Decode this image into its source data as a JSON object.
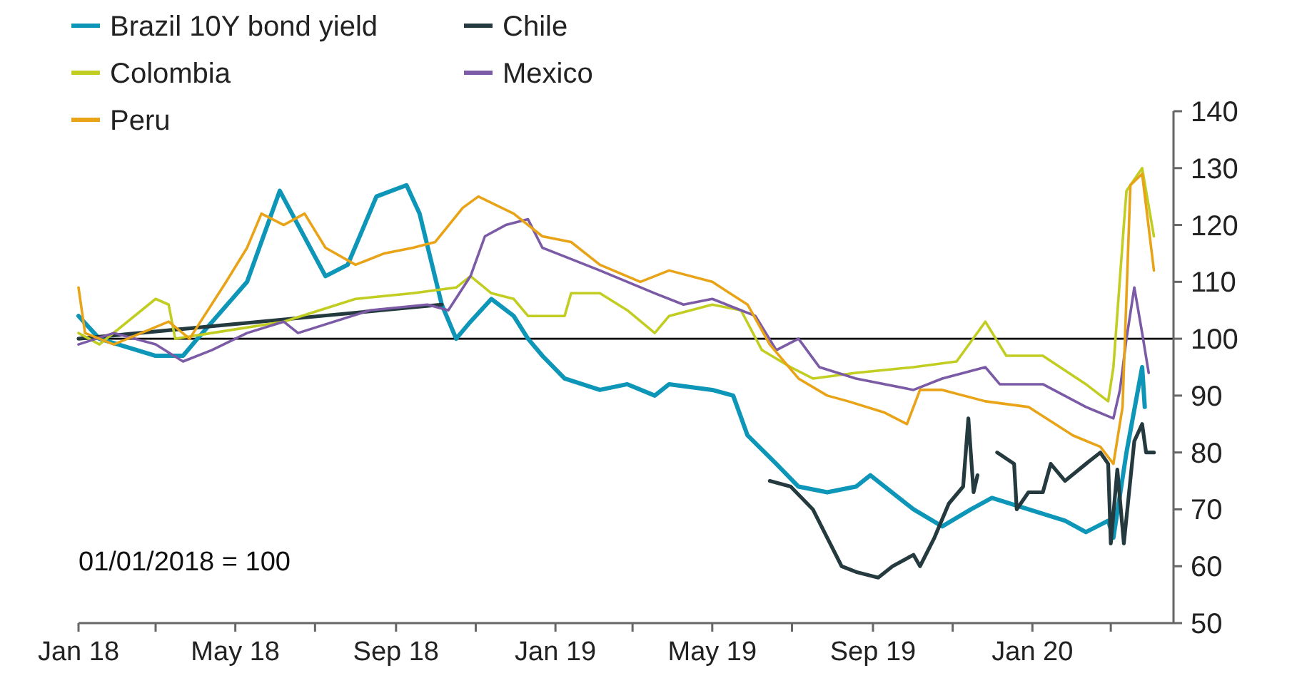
{
  "chart_data": {
    "type": "line",
    "legend": "top left",
    "grid": false,
    "xlim": [
      "2018-01-01",
      "2020-04-18"
    ],
    "xticks": [
      {
        "value": "2018-01-01",
        "label": "Jan 18"
      },
      {
        "value": "2018-03-01",
        "label": null
      },
      {
        "value": "2018-05-01",
        "label": "May 18"
      },
      {
        "value": "2018-07-01",
        "label": null
      },
      {
        "value": "2018-09-01",
        "label": "Sep 18"
      },
      {
        "value": "2018-11-01",
        "label": null
      },
      {
        "value": "2019-01-01",
        "label": "Jan 19"
      },
      {
        "value": "2019-03-01",
        "label": null
      },
      {
        "value": "2019-05-01",
        "label": "May 19"
      },
      {
        "value": "2019-07-01",
        "label": null
      },
      {
        "value": "2019-09-01",
        "label": "Sep 19"
      },
      {
        "value": "2019-11-01",
        "label": null
      },
      {
        "value": "2020-01-01",
        "label": "Jan 20"
      },
      {
        "value": "2020-03-01",
        "label": null
      }
    ],
    "ylim": [
      50,
      140
    ],
    "yticks": [
      50,
      60,
      70,
      80,
      90,
      100,
      110,
      120,
      130,
      140
    ],
    "ref_lines": [
      {
        "axis": "y",
        "value": 100,
        "color": "#000000"
      }
    ],
    "annotations": [
      "01/01/2018 = 100"
    ],
    "series": [
      {
        "name": "Brazil 10Y bond yield",
        "color": "#0e96b9",
        "x": [
          "2018-01-01",
          "2018-01-17",
          "2018-03-01",
          "2018-03-22",
          "2018-04-02",
          "2018-05-10",
          "2018-06-04",
          "2018-06-18",
          "2018-07-09",
          "2018-07-26",
          "2018-08-17",
          "2018-09-09",
          "2018-09-19",
          "2018-10-06",
          "2018-10-17",
          "2018-10-28",
          "2018-11-13",
          "2018-11-30",
          "2018-12-11",
          "2018-12-22",
          "2019-01-08",
          "2019-02-04",
          "2019-02-25",
          "2019-03-18",
          "2019-03-29",
          "2019-05-01",
          "2019-05-17",
          "2019-05-28",
          "2019-06-19",
          "2019-07-06",
          "2019-07-28",
          "2019-08-19",
          "2019-08-30",
          "2019-09-10",
          "2019-10-02",
          "2019-10-24",
          "2019-11-15",
          "2019-12-01",
          "2019-12-29",
          "2020-01-26",
          "2020-02-11",
          "2020-02-28",
          "2020-03-03",
          "2020-03-13",
          "2020-03-25",
          "2020-03-27"
        ],
        "values": [
          104,
          100,
          97,
          97,
          100,
          110,
          126,
          120,
          111,
          113,
          125,
          127,
          122,
          106,
          100,
          103,
          107,
          104,
          100,
          97,
          93,
          91,
          92,
          90,
          92,
          91,
          90,
          83,
          78,
          74,
          73,
          74,
          76,
          74,
          70,
          67,
          70,
          72,
          70,
          68,
          66,
          68,
          65,
          80,
          95,
          88
        ]
      },
      {
        "name": "Chile",
        "color": "#243a3e",
        "x": [
          "2018-01-01",
          "2018-10-06",
          "2019-01-01",
          "2019-06-14",
          "2019-06-30",
          "2019-07-17",
          "2019-07-28",
          "2019-08-08",
          "2019-08-19",
          "2019-09-05",
          "2019-09-16",
          "2019-10-02",
          "2019-10-07",
          "2019-10-18",
          "2019-10-29",
          "2019-11-09",
          "2019-11-13",
          "2019-11-17",
          "2019-11-20",
          "2019-11-24",
          "2019-12-05",
          "2019-12-18",
          "2019-12-20",
          "2019-12-29",
          "2020-01-09",
          "2020-01-15",
          "2020-01-26",
          "2020-02-11",
          "2020-02-22",
          "2020-02-28",
          "2020-03-01",
          "2020-03-06",
          "2020-03-11",
          "2020-03-19",
          "2020-03-25",
          "2020-03-28",
          "2020-04-03"
        ],
        "values": [
          100,
          106,
          null,
          75,
          74,
          70,
          65,
          60,
          59,
          58,
          60,
          62,
          60,
          65,
          71,
          74,
          86,
          73,
          76,
          null,
          80,
          78,
          70,
          73,
          73,
          78,
          75,
          78,
          80,
          78,
          64,
          77,
          64,
          82,
          85,
          80,
          80
        ]
      },
      {
        "name": "Colombia",
        "color": "#c2cd22",
        "x": [
          "2018-01-01",
          "2018-01-17",
          "2018-03-01",
          "2018-03-11",
          "2018-03-16",
          "2018-04-13",
          "2018-06-07",
          "2018-08-01",
          "2018-09-14",
          "2018-10-17",
          "2018-10-28",
          "2018-11-13",
          "2018-11-30",
          "2018-12-11",
          "2019-01-08",
          "2019-01-13",
          "2019-02-04",
          "2019-02-25",
          "2019-03-18",
          "2019-03-29",
          "2019-05-01",
          "2019-05-23",
          "2019-06-08",
          "2019-06-30",
          "2019-07-17",
          "2019-08-19",
          "2019-10-02",
          "2019-11-04",
          "2019-11-26",
          "2019-12-12",
          "2020-01-09",
          "2020-02-11",
          "2020-02-28",
          "2020-03-03",
          "2020-03-11",
          "2020-03-13",
          "2020-03-25",
          "2020-04-03"
        ],
        "values": [
          101,
          99,
          107,
          106,
          100,
          101,
          103,
          107,
          108,
          109,
          111,
          108,
          107,
          104,
          104,
          108,
          108,
          105,
          101,
          104,
          106,
          105,
          98,
          95,
          93,
          94,
          95,
          96,
          103,
          97,
          97,
          92,
          89,
          95,
          120,
          126,
          130,
          118
        ]
      },
      {
        "name": "Mexico",
        "color": "#7b5aa6",
        "x": [
          "2018-01-01",
          "2018-01-28",
          "2018-03-01",
          "2018-03-22",
          "2018-04-13",
          "2018-05-10",
          "2018-06-07",
          "2018-06-18",
          "2018-08-12",
          "2018-09-25",
          "2018-10-11",
          "2018-10-28",
          "2018-11-08",
          "2018-11-24",
          "2018-12-11",
          "2018-12-22",
          "2019-01-13",
          "2019-02-04",
          "2019-02-25",
          "2019-03-18",
          "2019-04-09",
          "2019-05-01",
          "2019-06-03",
          "2019-06-19",
          "2019-07-06",
          "2019-07-22",
          "2019-08-19",
          "2019-10-02",
          "2019-10-24",
          "2019-11-26",
          "2019-12-07",
          "2020-01-09",
          "2020-02-11",
          "2020-03-03",
          "2020-03-08",
          "2020-03-13",
          "2020-03-19",
          "2020-03-25",
          "2020-03-30"
        ],
        "values": [
          99,
          101,
          99,
          96,
          98,
          101,
          103,
          101,
          105,
          106,
          105,
          111,
          118,
          120,
          121,
          116,
          114,
          112,
          110,
          108,
          106,
          107,
          104,
          98,
          100,
          95,
          93,
          91,
          93,
          95,
          92,
          92,
          88,
          86,
          91,
          100,
          109,
          101,
          94
        ]
      },
      {
        "name": "Peru",
        "color": "#e8a317",
        "x": [
          "2018-01-01",
          "2018-01-06",
          "2018-01-28",
          "2018-03-11",
          "2018-03-27",
          "2018-04-24",
          "2018-05-10",
          "2018-05-21",
          "2018-06-07",
          "2018-06-23",
          "2018-07-09",
          "2018-08-01",
          "2018-08-23",
          "2018-09-14",
          "2018-10-01",
          "2018-10-22",
          "2018-11-03",
          "2018-11-30",
          "2018-12-22",
          "2019-01-13",
          "2019-02-04",
          "2019-03-07",
          "2019-03-29",
          "2019-05-01",
          "2019-05-28",
          "2019-06-14",
          "2019-07-06",
          "2019-07-28",
          "2019-08-13",
          "2019-09-10",
          "2019-09-27",
          "2019-10-07",
          "2019-10-24",
          "2019-11-26",
          "2019-12-29",
          "2020-02-01",
          "2020-02-22",
          "2020-03-03",
          "2020-03-10",
          "2020-03-16",
          "2020-03-25",
          "2020-04-03"
        ],
        "values": [
          109,
          101,
          99,
          103,
          100,
          110,
          116,
          122,
          120,
          122,
          116,
          113,
          115,
          116,
          117,
          123,
          125,
          122,
          118,
          117,
          113,
          110,
          112,
          110,
          106,
          99,
          93,
          90,
          89,
          87,
          85,
          91,
          91,
          89,
          88,
          83,
          81,
          78,
          88,
          127,
          129,
          112
        ]
      }
    ]
  }
}
